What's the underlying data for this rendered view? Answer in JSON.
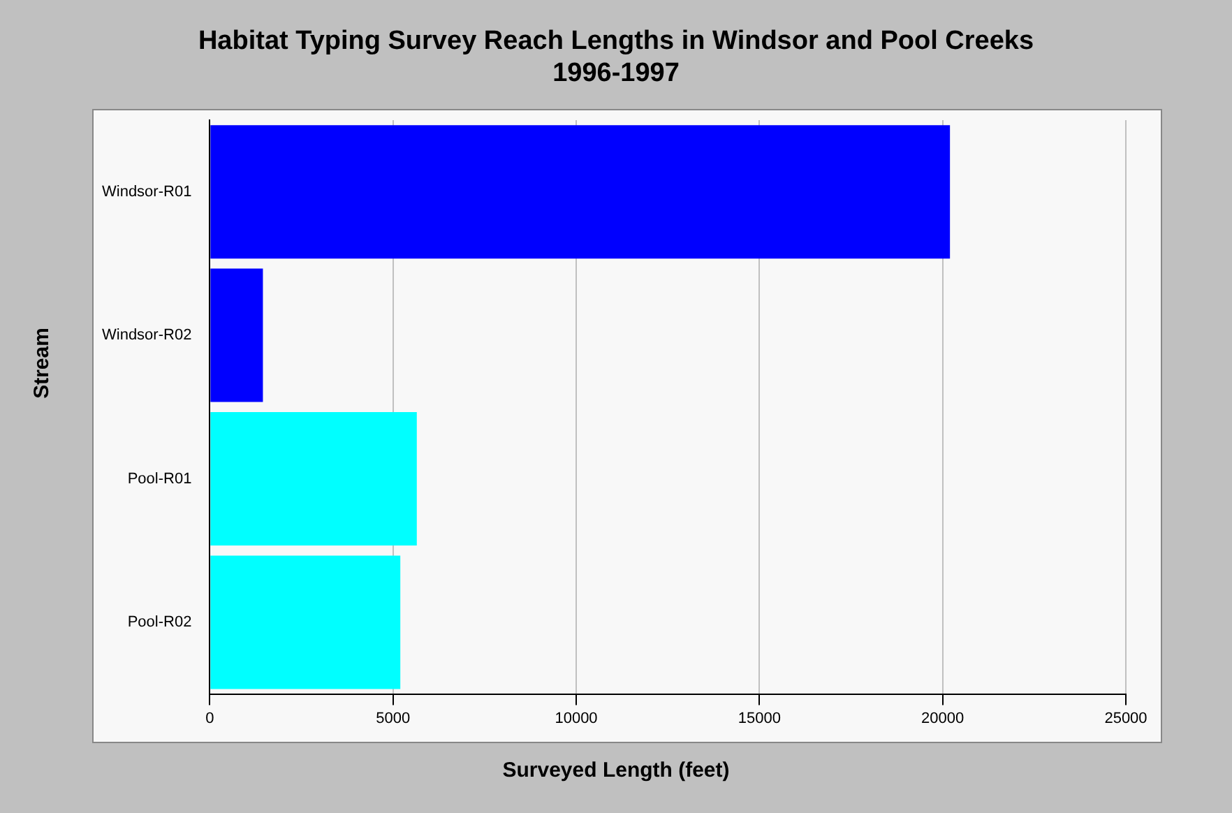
{
  "chart_data": {
    "type": "bar",
    "orientation": "horizontal",
    "title": "Habitat Typing Survey Reach Lengths in Windsor and Pool Creeks\n1996-1997",
    "xlabel": "Surveyed Length (feet)",
    "ylabel": "Stream",
    "categories": [
      "Windsor-R01",
      "Windsor-R02",
      "Pool-R01",
      "Pool-R02"
    ],
    "values": [
      20200,
      1450,
      5650,
      5200
    ],
    "colors": [
      "#0000ff",
      "#0000ff",
      "#00ffff",
      "#00ffff"
    ],
    "xlim": [
      0,
      25000
    ],
    "xticks": [
      0,
      5000,
      10000,
      15000,
      20000,
      25000
    ],
    "grid": "x",
    "legend": false
  }
}
